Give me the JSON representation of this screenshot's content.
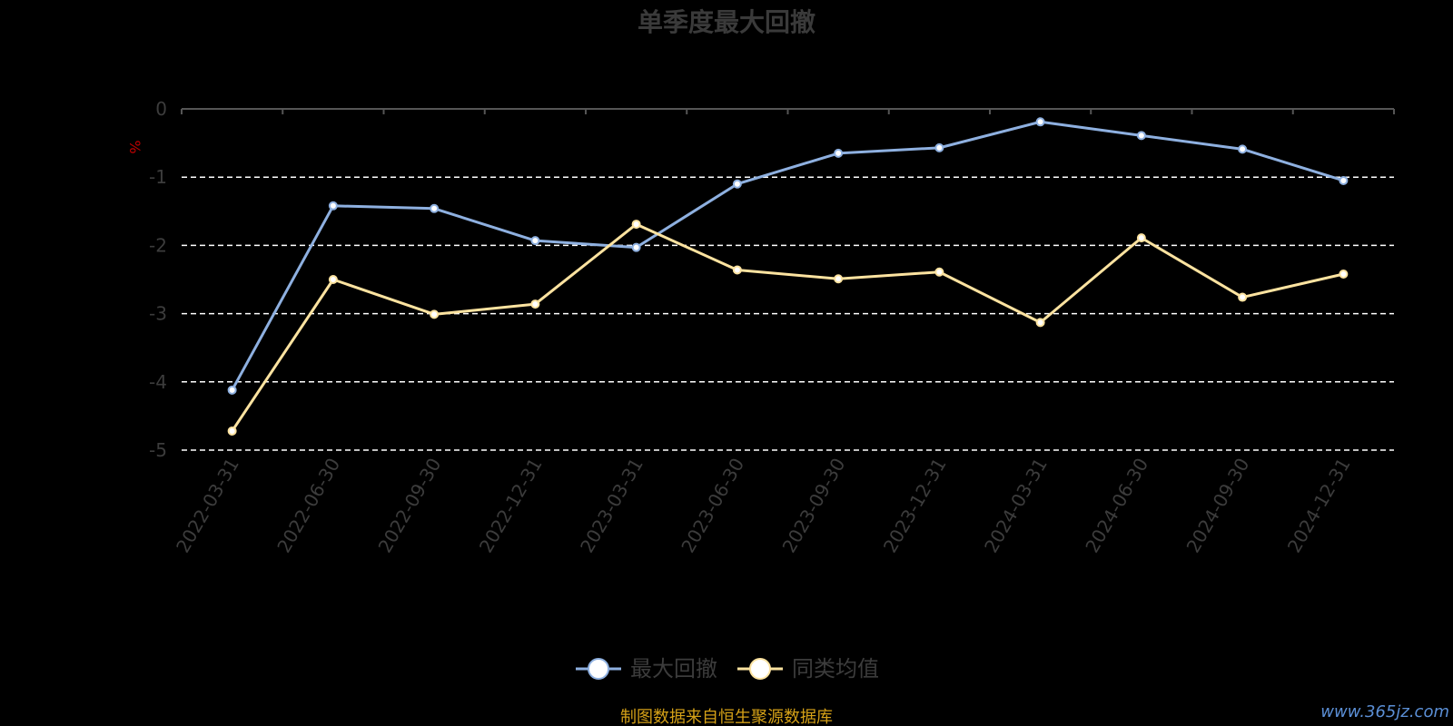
{
  "colors": {
    "background": "#000000",
    "series_drawdown": "#8eb0e0",
    "series_peer_avg": "#fde3a0",
    "grid": "#ffffff",
    "axis": "#555555",
    "unit": "#c00000",
    "source": "#d4a017",
    "watermark": "#5b8fd6"
  },
  "chart_data": {
    "type": "line",
    "title": "单季度最大回撤",
    "ylabel": "%",
    "ylim": [
      -5,
      0
    ],
    "yticks": [
      0,
      -1,
      -2,
      -3,
      -4,
      -5
    ],
    "yticks_labels": [
      "0",
      "-1",
      "-2",
      "-3",
      "-4",
      "-5"
    ],
    "grid": "dashed-horizontal",
    "legend_position": "bottom-center",
    "categories": [
      "2022-03-31",
      "2022-06-30",
      "2022-09-30",
      "2022-12-31",
      "2023-03-31",
      "2023-06-30",
      "2023-09-30",
      "2023-12-31",
      "2024-03-31",
      "2024-06-30",
      "2024-09-30",
      "2024-12-31"
    ],
    "series": [
      {
        "name": "最大回撤",
        "values": [
          -4.12,
          -1.42,
          -1.46,
          -1.93,
          -2.03,
          -1.1,
          -0.65,
          -0.57,
          -0.19,
          -0.39,
          -0.59,
          -1.05
        ]
      },
      {
        "name": "同类均值",
        "values": [
          -4.72,
          -2.5,
          -3.01,
          -2.86,
          -1.69,
          -2.36,
          -2.49,
          -2.39,
          -3.13,
          -1.89,
          -2.76,
          -2.42
        ]
      }
    ]
  },
  "footer": {
    "source": "制图数据来自恒生聚源数据库",
    "watermark": "www.365jz.com"
  }
}
